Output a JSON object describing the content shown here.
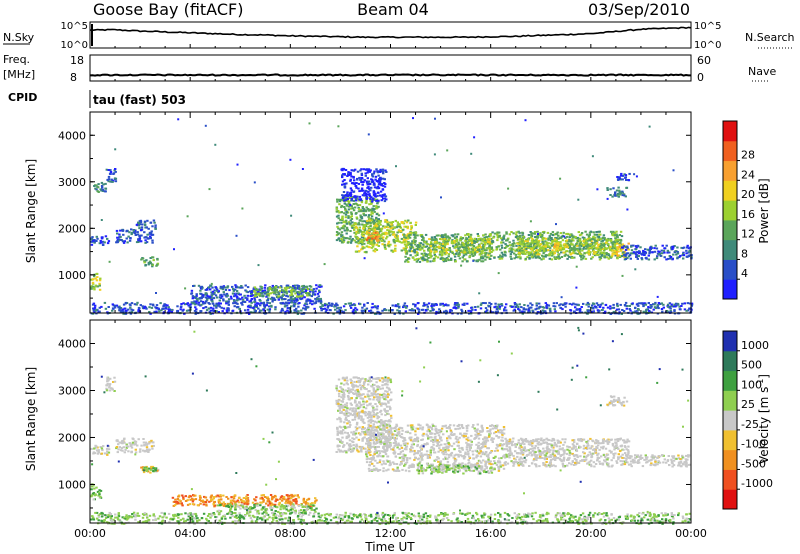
{
  "header": {
    "station": "Goose Bay (fitACF)",
    "beam": "Beam 04",
    "date": "03/Sep/2010"
  },
  "strip1": {
    "left_label": "N.Sky",
    "right_label": "N.Search",
    "left_ticks": [
      "10^5",
      "10^0"
    ],
    "right_ticks": [
      "10^5",
      "10^0"
    ]
  },
  "strip2": {
    "left_label_top": "Freq.",
    "left_label_bottom": "[MHz]",
    "right_label": "Nave",
    "left_ticks": [
      "18",
      "8"
    ],
    "right_ticks": [
      "60",
      "0"
    ]
  },
  "cpid": {
    "label": "CPID",
    "mode": "tau (fast) 503"
  },
  "chart_data": [
    {
      "type": "line",
      "name": "noise-sky-search",
      "y_scale": "log",
      "x_range_hours": [
        0,
        24
      ],
      "series": [
        {
          "name": "N.Sky",
          "x": [
            0,
            1,
            2,
            3,
            4,
            5,
            6,
            7,
            8,
            9,
            10,
            11,
            12,
            13,
            14,
            15,
            16,
            17,
            18,
            19,
            20,
            21,
            22,
            23,
            24
          ],
          "values": [
            3.6,
            3.7,
            3.4,
            3.2,
            3.0,
            2.8,
            2.6,
            2.5,
            2.3,
            2.2,
            2.1,
            2.0,
            2.0,
            2.0,
            2.0,
            2.0,
            2.1,
            2.2,
            2.4,
            2.6,
            2.8,
            3.3,
            3.8,
            4.0,
            4.2
          ]
        }
      ]
    },
    {
      "type": "line",
      "name": "frequency",
      "x_range_hours": [
        0,
        24
      ],
      "series": [
        {
          "name": "Freq.",
          "x": [
            0,
            24
          ],
          "values": [
            10.3,
            10.3
          ]
        }
      ],
      "ylim": [
        8,
        18
      ]
    },
    {
      "type": "heatmap",
      "name": "power",
      "title": "",
      "xlabel": "",
      "ylabel": "Slant Range [km]",
      "x_range_hours": [
        0,
        24
      ],
      "ylim": [
        180,
        4500
      ],
      "y_ticks": [
        "1000",
        "2000",
        "3000",
        "4000"
      ],
      "colorbar": {
        "label": "Power [dB]",
        "ticks": [
          "4",
          "8",
          "12",
          "16",
          "20",
          "24",
          "28"
        ],
        "colors": [
          "#2020ff",
          "#2a4fc8",
          "#3f8a7a",
          "#5aa55a",
          "#9cd030",
          "#f0d020",
          "#f8a030",
          "#f06020",
          "#e01010"
        ]
      },
      "regions": [
        {
          "t0": 0.0,
          "t1": 0.4,
          "r0": 700,
          "r1": 1050,
          "level": 4
        },
        {
          "t0": 0.0,
          "t1": 0.6,
          "r0": 2800,
          "r1": 3000,
          "level": 2
        },
        {
          "t0": 0.6,
          "t1": 1.0,
          "r0": 3000,
          "r1": 3300,
          "level": 1
        },
        {
          "t0": 0.0,
          "t1": 0.8,
          "r0": 1650,
          "r1": 1850,
          "level": 1
        },
        {
          "t0": 1.0,
          "t1": 2.5,
          "r0": 1700,
          "r1": 2000,
          "level": 1
        },
        {
          "t0": 1.8,
          "t1": 2.6,
          "r0": 2000,
          "r1": 2200,
          "level": 1
        },
        {
          "t0": 2.0,
          "t1": 2.7,
          "r0": 1200,
          "r1": 1400,
          "level": 3
        },
        {
          "t0": 4.0,
          "t1": 9.2,
          "r0": 400,
          "r1": 800,
          "level": 1
        },
        {
          "t0": 6.5,
          "t1": 8.8,
          "r0": 550,
          "r1": 780,
          "level": 3
        },
        {
          "t0": 0.0,
          "t1": 24.0,
          "r0": 180,
          "r1": 420,
          "level": 1
        },
        {
          "t0": 9.8,
          "t1": 11.5,
          "r0": 1700,
          "r1": 2700,
          "level": 3
        },
        {
          "t0": 10.5,
          "t1": 13.0,
          "r0": 1500,
          "r1": 2200,
          "level": 4
        },
        {
          "t0": 11.0,
          "t1": 11.5,
          "r0": 1750,
          "r1": 1950,
          "level": 6
        },
        {
          "t0": 12.5,
          "t1": 16.0,
          "r0": 1300,
          "r1": 1900,
          "level": 3
        },
        {
          "t0": 13.5,
          "t1": 16.0,
          "r0": 1450,
          "r1": 1800,
          "level": 4
        },
        {
          "t0": 16.0,
          "t1": 21.2,
          "r0": 1350,
          "r1": 1950,
          "level": 3
        },
        {
          "t0": 17.0,
          "t1": 21.0,
          "r0": 1450,
          "r1": 1800,
          "level": 4
        },
        {
          "t0": 18.5,
          "t1": 19.0,
          "r0": 1550,
          "r1": 1700,
          "level": 5
        },
        {
          "t0": 20.8,
          "t1": 21.5,
          "r0": 1400,
          "r1": 1700,
          "level": 5
        },
        {
          "t0": 21.2,
          "t1": 24.0,
          "r0": 1350,
          "r1": 1650,
          "level": 1
        },
        {
          "t0": 10.0,
          "t1": 11.8,
          "r0": 2600,
          "r1": 3300,
          "level": 0
        },
        {
          "t0": 20.6,
          "t1": 21.4,
          "r0": 2700,
          "r1": 2900,
          "level": 2
        },
        {
          "t0": 21.0,
          "t1": 21.5,
          "r0": 3050,
          "r1": 3200,
          "level": 1
        }
      ]
    },
    {
      "type": "heatmap",
      "name": "velocity",
      "title": "",
      "xlabel": "Time UT",
      "ylabel": "Slant Range [km]",
      "x_range_hours": [
        0,
        24
      ],
      "x_ticks": [
        "00:00",
        "04:00",
        "08:00",
        "12:00",
        "16:00",
        "20:00",
        "00:00"
      ],
      "ylim": [
        180,
        4500
      ],
      "y_ticks": [
        "1000",
        "2000",
        "3000",
        "4000"
      ],
      "colorbar": {
        "label": "Velocity [m s",
        "label_sup": "-1",
        "label_end": "]",
        "ticks": [
          "1000",
          "500",
          "100",
          "25",
          "-25",
          "-100",
          "-500",
          "-1000"
        ],
        "colors": [
          "#2030b0",
          "#2e7a5a",
          "#3ea040",
          "#8fcf50",
          "#c8c8c8",
          "#f0c030",
          "#f09020",
          "#f05020",
          "#e01010"
        ]
      },
      "regions": [
        {
          "t0": 0.0,
          "t1": 0.4,
          "r0": 700,
          "r1": 1050,
          "level": 3
        },
        {
          "t0": 0.6,
          "t1": 1.0,
          "r0": 3000,
          "r1": 3300,
          "level": 4
        },
        {
          "t0": 0.0,
          "t1": 0.8,
          "r0": 1650,
          "r1": 1850,
          "level": 4
        },
        {
          "t0": 1.0,
          "t1": 2.5,
          "r0": 1700,
          "r1": 2000,
          "level": 4
        },
        {
          "t0": 2.0,
          "t1": 2.7,
          "r0": 1250,
          "r1": 1400,
          "level": 5
        },
        {
          "t0": 2.1,
          "t1": 2.6,
          "r0": 1300,
          "r1": 1380,
          "level": 2
        },
        {
          "t0": 3.2,
          "t1": 9.0,
          "r0": 550,
          "r1": 800,
          "level": 6
        },
        {
          "t0": 5.0,
          "t1": 9.0,
          "r0": 400,
          "r1": 600,
          "level": 3
        },
        {
          "t0": 0.0,
          "t1": 24.0,
          "r0": 180,
          "r1": 420,
          "level": 3
        },
        {
          "t0": 9.8,
          "t1": 12.0,
          "r0": 1700,
          "r1": 3300,
          "level": 4
        },
        {
          "t0": 11.0,
          "t1": 16.5,
          "r0": 1300,
          "r1": 2300,
          "level": 4
        },
        {
          "t0": 16.5,
          "t1": 21.5,
          "r0": 1400,
          "r1": 2000,
          "level": 4
        },
        {
          "t0": 21.5,
          "t1": 24.0,
          "r0": 1400,
          "r1": 1650,
          "level": 4
        },
        {
          "t0": 13.0,
          "t1": 16.0,
          "r0": 1250,
          "r1": 1450,
          "level": 3
        },
        {
          "t0": 20.6,
          "t1": 21.4,
          "r0": 2700,
          "r1": 2900,
          "level": 4
        }
      ]
    }
  ]
}
